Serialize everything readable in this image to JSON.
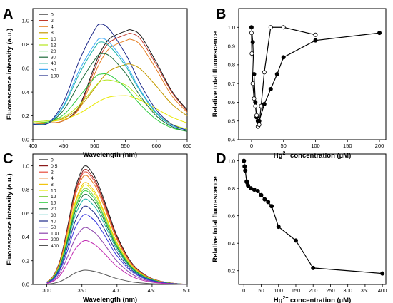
{
  "chart_data": [
    {
      "panel": "A",
      "type": "line",
      "xlabel": "Wavelength (nm)",
      "ylabel": "Fluorescence intensity (a.u.)",
      "xlim": [
        400,
        650
      ],
      "ylim": [
        0,
        1.1
      ],
      "xticks": [
        "400",
        "450",
        "500",
        "550",
        "600",
        "650"
      ],
      "yticks": [
        "0.0",
        "0.2",
        "0.4",
        "0.6",
        "0.8",
        "1.0"
      ],
      "legend_position": "top-left",
      "x": [
        400,
        425,
        450,
        475,
        500,
        510,
        525,
        550,
        560,
        575,
        600,
        625,
        650
      ],
      "series": [
        {
          "name": "0",
          "color": "#1a1a1a",
          "values": [
            0.13,
            0.14,
            0.16,
            0.28,
            0.62,
            0.74,
            0.85,
            0.91,
            0.92,
            0.87,
            0.65,
            0.41,
            0.25
          ]
        },
        {
          "name": "2",
          "color": "#c0392b",
          "values": [
            0.13,
            0.14,
            0.16,
            0.27,
            0.59,
            0.71,
            0.82,
            0.88,
            0.89,
            0.84,
            0.63,
            0.4,
            0.24
          ]
        },
        {
          "name": "4",
          "color": "#e67e22",
          "values": [
            0.13,
            0.14,
            0.16,
            0.26,
            0.55,
            0.66,
            0.77,
            0.83,
            0.84,
            0.79,
            0.59,
            0.37,
            0.23
          ]
        },
        {
          "name": "8",
          "color": "#c49a00",
          "values": [
            0.14,
            0.15,
            0.18,
            0.27,
            0.43,
            0.5,
            0.58,
            0.63,
            0.63,
            0.59,
            0.45,
            0.3,
            0.2
          ]
        },
        {
          "name": "10",
          "color": "#e8e800",
          "values": [
            0.14,
            0.15,
            0.17,
            0.22,
            0.3,
            0.33,
            0.36,
            0.37,
            0.36,
            0.33,
            0.26,
            0.19,
            0.14
          ]
        },
        {
          "name": "12",
          "color": "#b5e61d",
          "values": [
            0.15,
            0.16,
            0.19,
            0.29,
            0.44,
            0.49,
            0.5,
            0.46,
            0.42,
            0.34,
            0.22,
            0.13,
            0.09
          ]
        },
        {
          "name": "20",
          "color": "#2ecc40",
          "values": [
            0.14,
            0.15,
            0.21,
            0.36,
            0.52,
            0.55,
            0.54,
            0.44,
            0.38,
            0.29,
            0.17,
            0.1,
            0.07
          ]
        },
        {
          "name": "30",
          "color": "#1e6b3a",
          "values": [
            0.13,
            0.14,
            0.25,
            0.47,
            0.67,
            0.72,
            0.7,
            0.56,
            0.48,
            0.36,
            0.2,
            0.11,
            0.07
          ]
        },
        {
          "name": "40",
          "color": "#1ab5a8",
          "values": [
            0.13,
            0.14,
            0.28,
            0.55,
            0.77,
            0.82,
            0.78,
            0.62,
            0.53,
            0.4,
            0.22,
            0.12,
            0.08
          ]
        },
        {
          "name": "50",
          "color": "#3fa9f5",
          "values": [
            0.13,
            0.14,
            0.29,
            0.58,
            0.8,
            0.85,
            0.81,
            0.64,
            0.55,
            0.41,
            0.23,
            0.12,
            0.08
          ]
        },
        {
          "name": "100",
          "color": "#1f2a8a",
          "values": [
            0.13,
            0.14,
            0.32,
            0.66,
            0.92,
            0.97,
            0.92,
            0.72,
            0.62,
            0.46,
            0.25,
            0.13,
            0.08
          ]
        }
      ]
    },
    {
      "panel": "B",
      "type": "scatter",
      "xlabel_main": "Hg",
      "xlabel_sup": "2+",
      "xlabel_rest": " concentration (µM)",
      "ylabel": "Relative total fluorescence",
      "xlim": [
        -20,
        210
      ],
      "ylim": [
        0.4,
        1.1
      ],
      "xticks": [
        "0",
        "50",
        "100",
        "150",
        "200"
      ],
      "yticks": [
        "0.4",
        "0.5",
        "0.6",
        "0.7",
        "0.8",
        "0.9",
        "1.0"
      ],
      "series": [
        {
          "name": "filled",
          "marker": "filled",
          "x": [
            0,
            2,
            4,
            6,
            8,
            10,
            12,
            20,
            30,
            40,
            50,
            100,
            200
          ],
          "y": [
            1.0,
            0.92,
            0.75,
            0.6,
            0.52,
            0.5,
            0.5,
            0.59,
            0.67,
            0.75,
            0.84,
            0.93,
            0.97
          ]
        },
        {
          "name": "open",
          "marker": "open",
          "x": [
            0,
            0.5,
            2,
            4,
            6,
            8,
            10,
            12,
            15,
            20,
            30,
            50,
            100
          ],
          "y": [
            0.97,
            0.86,
            0.7,
            0.62,
            0.58,
            0.53,
            0.47,
            0.48,
            0.58,
            0.76,
            1.0,
            1.0,
            0.96
          ]
        }
      ]
    },
    {
      "panel": "C",
      "type": "line",
      "xlabel": "Wavelength (nm)",
      "ylabel": "Fluorescence intensity (a.u.)",
      "xlim": [
        280,
        500
      ],
      "ylim": [
        0,
        1.1
      ],
      "xticks": [
        "300",
        "350",
        "400",
        "450",
        "500"
      ],
      "yticks": [
        "0.0",
        "0.2",
        "0.4",
        "0.6",
        "0.8",
        "1.0"
      ],
      "legend_position": "top-left",
      "x": [
        300,
        310,
        320,
        330,
        340,
        350,
        355,
        360,
        370,
        380,
        390,
        400,
        420,
        440,
        460,
        480,
        500
      ],
      "shape": [
        0.02,
        0.08,
        0.23,
        0.5,
        0.8,
        0.97,
        1.0,
        0.98,
        0.89,
        0.74,
        0.57,
        0.41,
        0.19,
        0.08,
        0.03,
        0.01,
        0.0
      ],
      "series": [
        {
          "name": "0",
          "color": "#1a1a1a",
          "peak": 1.0
        },
        {
          "name": "0,5",
          "color": "#8b1a1a",
          "peak": 0.97
        },
        {
          "name": "2",
          "color": "#e74c3c",
          "peak": 0.95
        },
        {
          "name": "4",
          "color": "#e67e22",
          "peak": 0.92
        },
        {
          "name": "8",
          "color": "#f1c40f",
          "peak": 0.86
        },
        {
          "name": "10",
          "color": "#e8e800",
          "peak": 0.84
        },
        {
          "name": "12",
          "color": "#8fd14f",
          "peak": 0.81
        },
        {
          "name": "15",
          "color": "#2ecc40",
          "peak": 0.79
        },
        {
          "name": "20",
          "color": "#1e6b3a",
          "peak": 0.76
        },
        {
          "name": "30",
          "color": "#1ab5a8",
          "peak": 0.72
        },
        {
          "name": "40",
          "color": "#1f2a8a",
          "peak": 0.66
        },
        {
          "name": "50",
          "color": "#3a3ae0",
          "peak": 0.59
        },
        {
          "name": "100",
          "color": "#8e44ad",
          "peak": 0.48
        },
        {
          "name": "200",
          "color": "#c026b0",
          "peak": 0.37
        },
        {
          "name": "400",
          "color": "#555555",
          "peak": 0.12
        }
      ]
    },
    {
      "panel": "D",
      "type": "scatter",
      "xlabel_main": "Hg",
      "xlabel_sup": "2+",
      "xlabel_rest": " concentration (µM)",
      "ylabel": "Relative total fluorescence",
      "xlim": [
        -15,
        410
      ],
      "ylim": [
        0.1,
        1.05
      ],
      "xticks": [
        "0",
        "50",
        "100",
        "150",
        "200",
        "250",
        "300",
        "350",
        "400"
      ],
      "yticks": [
        "0.2",
        "0.4",
        "0.6",
        "0.8",
        "1.0"
      ],
      "series": [
        {
          "name": "filled",
          "marker": "filled",
          "x": [
            0,
            2,
            4,
            8,
            10,
            12,
            20,
            30,
            40,
            50,
            60,
            70,
            80,
            100,
            150,
            200,
            400
          ],
          "y": [
            1.0,
            0.96,
            0.93,
            0.85,
            0.84,
            0.82,
            0.8,
            0.79,
            0.78,
            0.75,
            0.72,
            0.7,
            0.67,
            0.52,
            0.42,
            0.22,
            0.18
          ]
        }
      ]
    }
  ]
}
